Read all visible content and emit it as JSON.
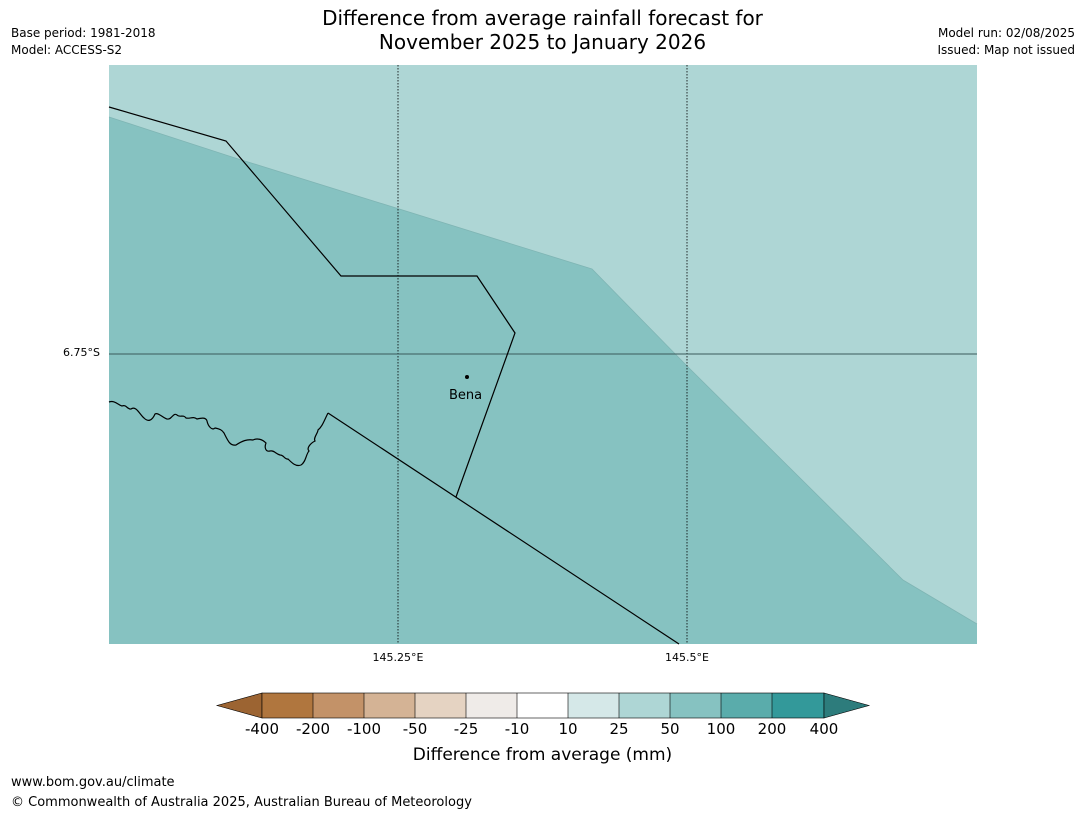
{
  "header": {
    "title_line1": "Difference from average rainfall forecast for",
    "title_line2": "November 2025 to January 2026",
    "base_period": "Base period: 1981-2018",
    "model": "Model: ACCESS-S2",
    "model_run": "Model run: 02/08/2025",
    "issued": "Issued: Map not issued"
  },
  "map": {
    "lat_labels": [
      "6.75°S"
    ],
    "lon_labels": [
      "145.25°E",
      "145.5°E"
    ],
    "places": [
      {
        "name": "Bena"
      }
    ],
    "region_colors": {
      "light": "#aed6d5",
      "medium": "#86c2c1"
    }
  },
  "legend": {
    "label": "Difference from average (mm)",
    "ticks": [
      "-400",
      "-200",
      "-100",
      "-50",
      "-25",
      "-10",
      "10",
      "25",
      "50",
      "100",
      "200",
      "400"
    ],
    "colors": [
      "#9c6432",
      "#b0763e",
      "#c39268",
      "#d4b395",
      "#e5d3c2",
      "#efebe8",
      "#ffffff",
      "#d5e8e8",
      "#aed6d5",
      "#86c2c1",
      "#5aacab",
      "#33999a",
      "#2d7c7c"
    ]
  },
  "footer": {
    "url": "www.bom.gov.au/climate",
    "copyright": "© Commonwealth of Australia 2025, Australian Bureau of Meteorology"
  }
}
